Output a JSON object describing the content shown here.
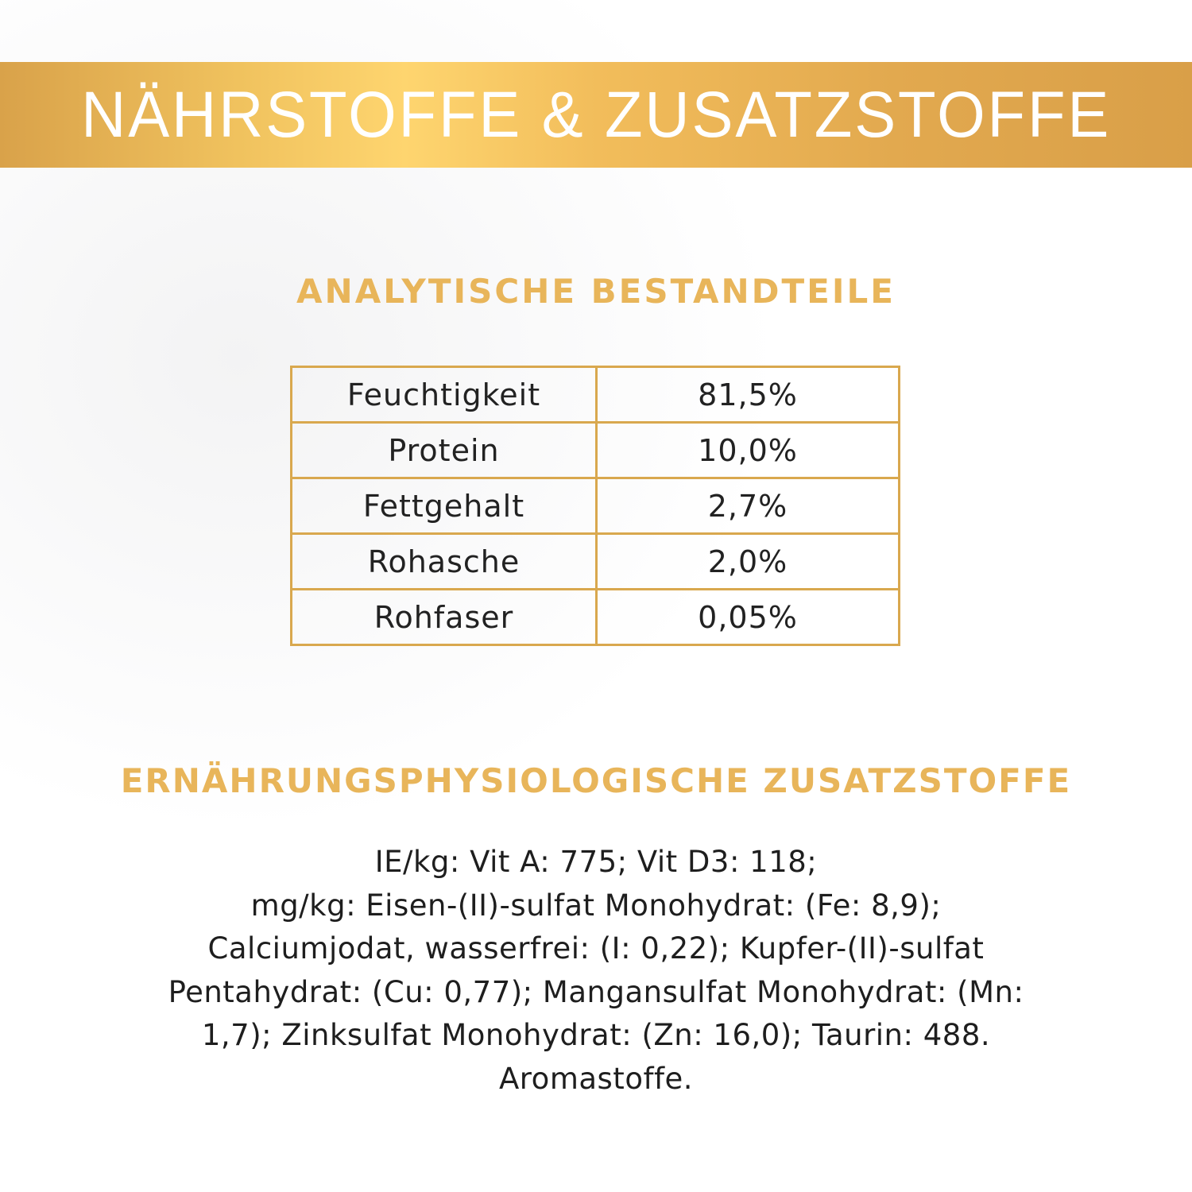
{
  "banner": {
    "title": "NÄHRSTOFFE & ZUSATZSTOFFE"
  },
  "analytic": {
    "heading": "ANALYTISCHE BESTANDTEILE",
    "rows": [
      {
        "name": "Feuchtigkeit",
        "value": "81,5%"
      },
      {
        "name": "Protein",
        "value": "10,0%"
      },
      {
        "name": "Fettgehalt",
        "value": "2,7%"
      },
      {
        "name": "Rohasche",
        "value": "2,0%"
      },
      {
        "name": "Rohfaser",
        "value": "0,05%"
      }
    ]
  },
  "additives": {
    "heading": "ERNÄHRUNGSPHYSIOLOGISCHE ZUSATZSTOFFE",
    "lines": [
      "IE/kg: Vit A: 775; Vit D3: 118;",
      "mg/kg: Eisen-(II)-sulfat Monohydrat: (Fe: 8,9);",
      "Calciumjodat, wasserfrei: (I: 0,22); Kupfer-(II)-sulfat",
      "Pentahydrat: (Cu: 0,77); Mangansulfat Monohydrat: (Mn:",
      "1,7); Zinksulfat Monohydrat: (Zn: 16,0); Taurin: 488.",
      "Aromastoffe."
    ]
  },
  "colors": {
    "gold": "#e8b55a",
    "border": "#d9a84e",
    "text": "#1e1e1e"
  }
}
